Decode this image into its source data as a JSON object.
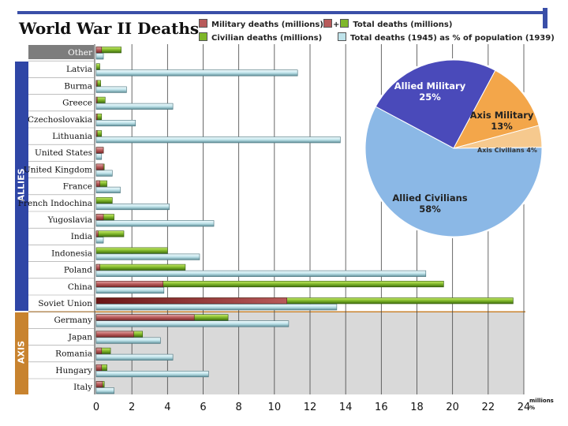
{
  "title": "World War II Deaths",
  "legend": {
    "military": "Military deaths (millions)",
    "plus": "+",
    "total": "Total deaths (millions)",
    "civilian": "Civilian deaths (millions)",
    "percent": "Total deaths (1945) as % of population (1939)"
  },
  "groups": {
    "allies": "ALLIES",
    "axis": "AXIS"
  },
  "colors": {
    "military": "#b85a5a",
    "civilian": "#7fb72a",
    "percent": "#bfe3ea",
    "allies": "#2f46a6",
    "axis": "#c8832f",
    "pie_allied_military": "#4a4aba",
    "pie_axis_military": "#f3a64a",
    "pie_axis_civilians": "#f6c98e",
    "pie_allied_civilians": "#8bb8e6"
  },
  "chart_data": [
    {
      "type": "bar",
      "title": "World War II Deaths",
      "xlabel": "millions / %",
      "xlim": [
        0,
        24
      ],
      "x_ticks": [
        "0",
        "2",
        "4",
        "6",
        "8",
        "10",
        "12",
        "14",
        "16",
        "18",
        "20",
        "22",
        "24"
      ],
      "axis_unit_top": "millions",
      "axis_unit_bottom": "%",
      "categories": [
        "Other",
        "Latvia",
        "Burma",
        "Greece",
        "Czechoslovakia",
        "Lithuania",
        "United States",
        "United Kingdom",
        "France",
        "French Indochina",
        "Yugoslavia",
        "India",
        "Indonesia",
        "Poland",
        "China",
        "Soviet Union",
        "Germany",
        "Japan",
        "Romania",
        "Hungary",
        "Italy"
      ],
      "group": [
        "other",
        "allies",
        "allies",
        "allies",
        "allies",
        "allies",
        "allies",
        "allies",
        "allies",
        "allies",
        "allies",
        "allies",
        "allies",
        "allies",
        "allies",
        "allies",
        "axis",
        "axis",
        "axis",
        "axis",
        "axis"
      ],
      "series": [
        {
          "name": "Military deaths (millions)",
          "values": [
            0.3,
            0.0,
            0.05,
            0.05,
            0.05,
            0.05,
            0.4,
            0.4,
            0.2,
            0.0,
            0.4,
            0.1,
            0.0,
            0.2,
            3.75,
            10.7,
            5.5,
            2.1,
            0.3,
            0.3,
            0.35
          ]
        },
        {
          "name": "Total deaths (millions)",
          "values": [
            1.4,
            0.2,
            0.25,
            0.5,
            0.3,
            0.3,
            0.4,
            0.45,
            0.6,
            0.9,
            1.0,
            1.55,
            4.0,
            5.0,
            19.5,
            23.4,
            7.4,
            2.6,
            0.8,
            0.6,
            0.45
          ]
        },
        {
          "name": "Total deaths (1945) as % of population (1939)",
          "values": [
            0.4,
            11.3,
            1.7,
            4.3,
            2.2,
            13.7,
            0.3,
            0.9,
            1.35,
            4.1,
            6.6,
            0.4,
            5.8,
            18.5,
            3.8,
            13.5,
            10.8,
            3.6,
            4.3,
            6.3,
            1.0
          ]
        }
      ]
    },
    {
      "type": "pie",
      "slices": [
        {
          "label": "Allied Military",
          "value": 25,
          "text": "25%"
        },
        {
          "label": "Axis Military",
          "value": 13,
          "text": "13%"
        },
        {
          "label": "Axis Civilians",
          "value": 4,
          "text": "4%"
        },
        {
          "label": "Allied Civilians",
          "value": 58,
          "text": "58%"
        }
      ]
    }
  ]
}
